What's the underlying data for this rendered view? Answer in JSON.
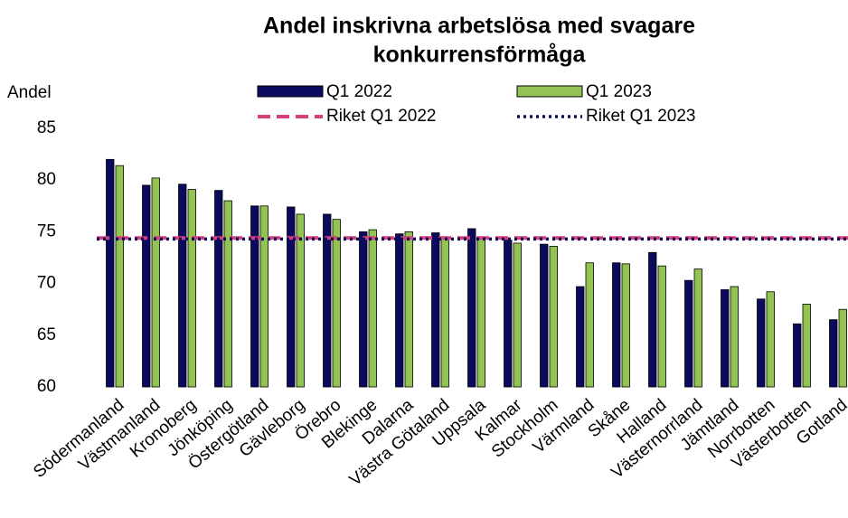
{
  "chart_data": {
    "type": "bar",
    "title": [
      "Andel inskrivna arbetslösa med svagare",
      "konkurrensförmåga"
    ],
    "y_label": "Andel",
    "categories": [
      "Södermanland",
      "Västmanland",
      "Kronoberg",
      "Jönköping",
      "Östergötland",
      "Gävleborg",
      "Örebro",
      "Blekinge",
      "Dalarna",
      "Västra Götaland",
      "Uppsala",
      "Kalmar",
      "Stockholm",
      "Värmland",
      "Skåne",
      "Halland",
      "Västernorrland",
      "Jämtland",
      "Norrbotten",
      "Västerbotten",
      "Gotland"
    ],
    "series": [
      {
        "name": "Q1 2022",
        "color": "#0a0a5e",
        "values": [
          82.0,
          79.5,
          79.6,
          79.0,
          77.5,
          77.4,
          76.7,
          75.0,
          74.8,
          74.9,
          75.3,
          74.2,
          73.8,
          69.7,
          72.0,
          73.0,
          70.3,
          69.4,
          68.5,
          66.1,
          66.5
        ]
      },
      {
        "name": "Q1 2023",
        "color": "#92c353",
        "values": [
          81.4,
          80.2,
          79.1,
          78.0,
          77.5,
          76.7,
          76.2,
          75.2,
          75.0,
          74.5,
          74.4,
          73.9,
          73.6,
          72.0,
          71.9,
          71.7,
          71.4,
          69.7,
          69.2,
          68.0,
          67.5
        ]
      }
    ],
    "reference_lines": [
      {
        "name": "Riket Q1 2022",
        "color": "#d6407a",
        "style": "dashed",
        "value": 74.4
      },
      {
        "name": "Riket Q1 2023",
        "color": "#0a0a5e",
        "style": "dotted",
        "value": 74.3
      }
    ],
    "ylim": [
      60,
      85
    ],
    "yticks": [
      60,
      65,
      70,
      75,
      80,
      85
    ],
    "grid": false
  }
}
